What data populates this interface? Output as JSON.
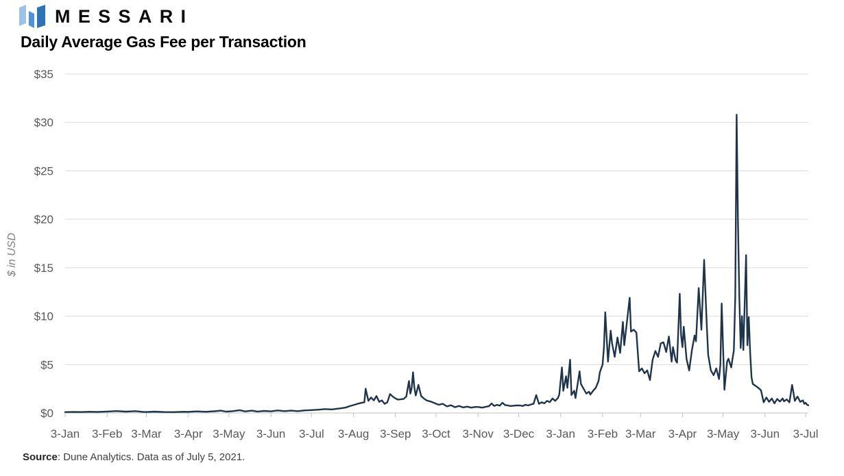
{
  "brand": {
    "wordmark": "MESSARI",
    "logo_colors": [
      "#9CC3E6",
      "#4D93D9",
      "#2E74B5"
    ]
  },
  "footer": {
    "source_label": "Source",
    "source_text": ": Dune Analytics. Data as of July 5, 2021."
  },
  "chart_data": {
    "type": "line",
    "title": "Daily Average Gas Fee per Transaction",
    "xlabel": "",
    "ylabel": "$ in USD",
    "ylim": [
      0,
      35
    ],
    "x_domain_days": [
      0,
      549
    ],
    "grid": "horizontal",
    "legend": "none",
    "colors": {
      "line": "#1e344a",
      "grid": "#d9d9d9",
      "axis": "#bfbfbf",
      "tick_text": "#595959",
      "axis_label_text": "#808080"
    },
    "y_ticks": [
      {
        "label": "$0",
        "value": 0
      },
      {
        "label": "$5",
        "value": 5
      },
      {
        "label": "$10",
        "value": 10
      },
      {
        "label": "$15",
        "value": 15
      },
      {
        "label": "$20",
        "value": 20
      },
      {
        "label": "$25",
        "value": 25
      },
      {
        "label": "$30",
        "value": 30
      },
      {
        "label": "$35",
        "value": 35
      }
    ],
    "x_ticks": [
      {
        "label": "3-Jan",
        "day": 0
      },
      {
        "label": "3-Feb",
        "day": 31
      },
      {
        "label": "3-Mar",
        "day": 60
      },
      {
        "label": "3-Apr",
        "day": 91
      },
      {
        "label": "3-May",
        "day": 121
      },
      {
        "label": "3-Jun",
        "day": 152
      },
      {
        "label": "3-Jul",
        "day": 182
      },
      {
        "label": "3-Aug",
        "day": 213
      },
      {
        "label": "3-Sep",
        "day": 244
      },
      {
        "label": "3-Oct",
        "day": 274
      },
      {
        "label": "3-Nov",
        "day": 305
      },
      {
        "label": "3-Dec",
        "day": 335
      },
      {
        "label": "3-Jan",
        "day": 366
      },
      {
        "label": "3-Feb",
        "day": 397
      },
      {
        "label": "3-Mar",
        "day": 425
      },
      {
        "label": "3-Apr",
        "day": 456
      },
      {
        "label": "3-May",
        "day": 486
      },
      {
        "label": "3-Jun",
        "day": 517
      },
      {
        "label": "3-Jul",
        "day": 547
      }
    ],
    "points": [
      [
        0,
        0.09
      ],
      [
        6,
        0.11
      ],
      [
        12,
        0.1
      ],
      [
        18,
        0.13
      ],
      [
        24,
        0.11
      ],
      [
        31,
        0.15
      ],
      [
        38,
        0.2
      ],
      [
        45,
        0.14
      ],
      [
        52,
        0.19
      ],
      [
        57,
        0.12
      ],
      [
        60,
        0.1
      ],
      [
        66,
        0.14
      ],
      [
        73,
        0.1
      ],
      [
        80,
        0.09
      ],
      [
        87,
        0.13
      ],
      [
        91,
        0.12
      ],
      [
        97,
        0.16
      ],
      [
        104,
        0.13
      ],
      [
        110,
        0.18
      ],
      [
        115,
        0.24
      ],
      [
        119,
        0.14
      ],
      [
        124,
        0.19
      ],
      [
        129,
        0.29
      ],
      [
        133,
        0.16
      ],
      [
        138,
        0.24
      ],
      [
        142,
        0.15
      ],
      [
        147,
        0.21
      ],
      [
        152,
        0.17
      ],
      [
        157,
        0.26
      ],
      [
        162,
        0.19
      ],
      [
        167,
        0.24
      ],
      [
        172,
        0.19
      ],
      [
        177,
        0.27
      ],
      [
        182,
        0.3
      ],
      [
        187,
        0.34
      ],
      [
        192,
        0.4
      ],
      [
        197,
        0.37
      ],
      [
        202,
        0.45
      ],
      [
        207,
        0.55
      ],
      [
        210,
        0.7
      ],
      [
        213,
        0.82
      ],
      [
        216,
        0.95
      ],
      [
        219,
        1.05
      ],
      [
        221,
        1.1
      ],
      [
        222,
        2.5
      ],
      [
        224,
        1.25
      ],
      [
        226,
        1.6
      ],
      [
        228,
        1.3
      ],
      [
        230,
        1.75
      ],
      [
        232,
        1.15
      ],
      [
        234,
        1.3
      ],
      [
        236,
        0.95
      ],
      [
        238,
        1.1
      ],
      [
        240,
        1.95
      ],
      [
        242,
        1.7
      ],
      [
        244,
        1.5
      ],
      [
        246,
        1.38
      ],
      [
        248,
        1.42
      ],
      [
        250,
        1.45
      ],
      [
        252,
        1.7
      ],
      [
        254,
        3.3
      ],
      [
        255,
        2.0
      ],
      [
        256,
        2.6
      ],
      [
        257,
        4.2
      ],
      [
        258,
        2.6
      ],
      [
        259,
        1.8
      ],
      [
        261,
        2.9
      ],
      [
        263,
        1.75
      ],
      [
        265,
        1.5
      ],
      [
        267,
        1.3
      ],
      [
        270,
        1.18
      ],
      [
        273,
        1.02
      ],
      [
        276,
        0.85
      ],
      [
        279,
        0.95
      ],
      [
        282,
        0.68
      ],
      [
        285,
        0.8
      ],
      [
        288,
        0.6
      ],
      [
        291,
        0.73
      ],
      [
        294,
        0.57
      ],
      [
        297,
        0.66
      ],
      [
        300,
        0.55
      ],
      [
        303,
        0.62
      ],
      [
        305,
        0.62
      ],
      [
        308,
        0.55
      ],
      [
        311,
        0.65
      ],
      [
        313,
        0.7
      ],
      [
        315,
        0.98
      ],
      [
        317,
        0.72
      ],
      [
        319,
        0.85
      ],
      [
        321,
        0.75
      ],
      [
        323,
        1.05
      ],
      [
        325,
        0.82
      ],
      [
        327,
        0.78
      ],
      [
        329,
        0.72
      ],
      [
        331,
        0.75
      ],
      [
        333,
        0.78
      ],
      [
        336,
        0.78
      ],
      [
        338,
        0.72
      ],
      [
        340,
        0.85
      ],
      [
        342,
        0.78
      ],
      [
        344,
        0.88
      ],
      [
        346,
        0.95
      ],
      [
        348,
        1.85
      ],
      [
        350,
        0.95
      ],
      [
        352,
        1.1
      ],
      [
        354,
        1.0
      ],
      [
        356,
        1.25
      ],
      [
        358,
        1.12
      ],
      [
        360,
        1.5
      ],
      [
        362,
        1.25
      ],
      [
        364,
        1.55
      ],
      [
        365,
        1.9
      ],
      [
        367,
        4.7
      ],
      [
        368,
        2.3
      ],
      [
        370,
        3.8
      ],
      [
        371,
        2.6
      ],
      [
        373,
        5.5
      ],
      [
        374,
        1.85
      ],
      [
        376,
        2.3
      ],
      [
        377,
        1.55
      ],
      [
        380,
        4.3
      ],
      [
        381,
        3.0
      ],
      [
        383,
        2.5
      ],
      [
        385,
        2.0
      ],
      [
        387,
        2.2
      ],
      [
        388,
        1.9
      ],
      [
        390,
        2.3
      ],
      [
        392,
        2.6
      ],
      [
        394,
        3.3
      ],
      [
        395,
        4.2
      ],
      [
        396,
        4.6
      ],
      [
        397,
        5.0
      ],
      [
        398,
        6.8
      ],
      [
        399,
        10.4
      ],
      [
        401,
        5.3
      ],
      [
        403,
        8.5
      ],
      [
        404,
        7.2
      ],
      [
        406,
        5.8
      ],
      [
        408,
        7.8
      ],
      [
        410,
        6.2
      ],
      [
        412,
        9.4
      ],
      [
        413,
        7.0
      ],
      [
        415,
        9.4
      ],
      [
        417,
        11.9
      ],
      [
        418,
        8.4
      ],
      [
        420,
        8.6
      ],
      [
        422,
        8.3
      ],
      [
        424,
        4.3
      ],
      [
        426,
        4.6
      ],
      [
        428,
        4.1
      ],
      [
        430,
        4.4
      ],
      [
        432,
        3.4
      ],
      [
        434,
        5.5
      ],
      [
        436,
        6.4
      ],
      [
        438,
        5.8
      ],
      [
        440,
        7.2
      ],
      [
        442,
        7.3
      ],
      [
        444,
        6.3
      ],
      [
        446,
        7.9
      ],
      [
        448,
        5.3
      ],
      [
        449,
        6.8
      ],
      [
        451,
        5.4
      ],
      [
        452,
        5.2
      ],
      [
        454,
        12.3
      ],
      [
        455,
        8.0
      ],
      [
        456,
        6.8
      ],
      [
        457,
        8.9
      ],
      [
        459,
        5.6
      ],
      [
        461,
        4.4
      ],
      [
        463,
        6.5
      ],
      [
        465,
        8.0
      ],
      [
        466,
        7.4
      ],
      [
        468,
        12.9
      ],
      [
        470,
        8.6
      ],
      [
        472,
        15.8
      ],
      [
        474,
        9.0
      ],
      [
        475,
        6.0
      ],
      [
        477,
        4.4
      ],
      [
        479,
        3.9
      ],
      [
        481,
        4.6
      ],
      [
        483,
        3.5
      ],
      [
        484,
        5.0
      ],
      [
        485,
        11.3
      ],
      [
        487,
        2.4
      ],
      [
        489,
        5.3
      ],
      [
        490,
        5.6
      ],
      [
        492,
        4.7
      ],
      [
        493,
        5.6
      ],
      [
        494,
        6.5
      ],
      [
        495,
        12.0
      ],
      [
        496,
        30.8
      ],
      [
        497,
        20.0
      ],
      [
        498,
        12.0
      ],
      [
        499,
        6.7
      ],
      [
        500,
        10.0
      ],
      [
        501,
        6.5
      ],
      [
        503,
        16.3
      ],
      [
        504,
        7.0
      ],
      [
        505,
        9.9
      ],
      [
        506,
        6.3
      ],
      [
        507,
        3.7
      ],
      [
        508,
        3.0
      ],
      [
        510,
        2.8
      ],
      [
        512,
        2.6
      ],
      [
        514,
        2.35
      ],
      [
        516,
        1.1
      ],
      [
        518,
        1.6
      ],
      [
        520,
        1.15
      ],
      [
        522,
        1.5
      ],
      [
        524,
        1.0
      ],
      [
        526,
        1.45
      ],
      [
        528,
        1.18
      ],
      [
        530,
        1.5
      ],
      [
        531,
        1.2
      ],
      [
        533,
        1.4
      ],
      [
        535,
        1.1
      ],
      [
        537,
        2.9
      ],
      [
        539,
        1.25
      ],
      [
        541,
        1.7
      ],
      [
        543,
        1.15
      ],
      [
        545,
        1.3
      ],
      [
        546,
        0.95
      ],
      [
        547,
        1.05
      ],
      [
        548,
        0.85
      ],
      [
        549,
        0.8
      ]
    ]
  }
}
